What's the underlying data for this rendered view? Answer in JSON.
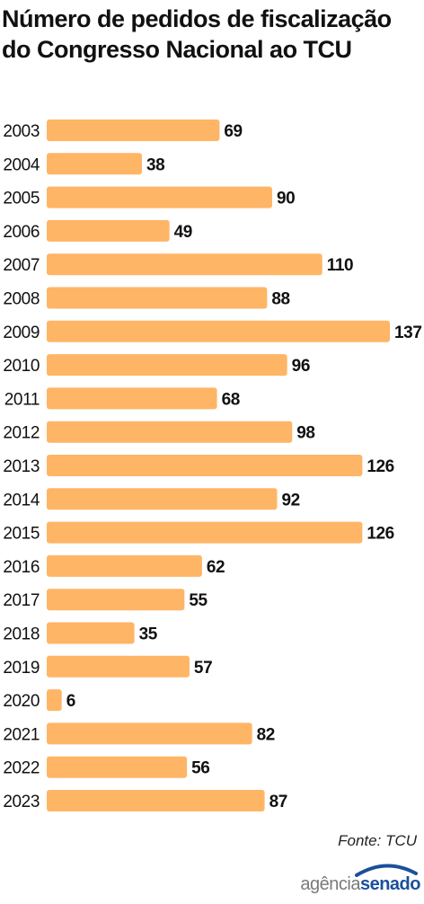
{
  "title": "Número de pedidos de fiscalização do Congresso Nacional ao TCU",
  "source": "Fonte: TCU",
  "logo": {
    "part1": "agência",
    "part2": "senado"
  },
  "colors": {
    "bar": "#ffb566",
    "text": "#111111",
    "logo_blue": "#1b4f9c",
    "logo_gray": "#7a7a7a"
  },
  "chart_data": {
    "type": "bar",
    "orientation": "horizontal",
    "title": "Número de pedidos de fiscalização do Congresso Nacional ao TCU",
    "xlabel": "",
    "ylabel": "",
    "categories": [
      "2003",
      "2004",
      "2005",
      "2006",
      "2007",
      "2008",
      "2009",
      "2010",
      "2011",
      "2012",
      "2013",
      "2014",
      "2015",
      "2016",
      "2017",
      "2018",
      "2019",
      "2020",
      "2021",
      "2022",
      "2023"
    ],
    "values": [
      69,
      38,
      90,
      49,
      110,
      88,
      137,
      96,
      68,
      98,
      126,
      92,
      126,
      62,
      55,
      35,
      57,
      6,
      82,
      56,
      87
    ],
    "xlim": [
      0,
      137
    ],
    "grid": false,
    "legend": "none",
    "data_labels": true
  }
}
